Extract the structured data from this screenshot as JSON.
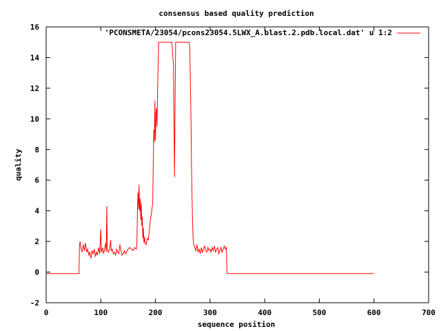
{
  "chart_data": {
    "type": "line",
    "title": "consensus based quality prediction",
    "xlabel": "sequence position",
    "ylabel": "quality",
    "xlim": [
      0,
      700
    ],
    "ylim": [
      -2,
      16
    ],
    "xticks": [
      0,
      100,
      200,
      300,
      400,
      500,
      600,
      700
    ],
    "yticks": [
      -2,
      0,
      2,
      4,
      6,
      8,
      10,
      12,
      14,
      16
    ],
    "grid": false,
    "legend_position": "top-right",
    "series": [
      {
        "name": "'PCONSMETA/23054/pcons23054.5LWX_A.blast.2.pdb.local.dat' u 1:2",
        "color": "#ff0000",
        "points": [
          [
            0,
            -0.1
          ],
          [
            60,
            -0.1
          ],
          [
            61,
            1.7
          ],
          [
            62,
            2.0
          ],
          [
            64,
            1.5
          ],
          [
            66,
            1.3
          ],
          [
            68,
            1.8
          ],
          [
            70,
            1.4
          ],
          [
            72,
            1.9
          ],
          [
            74,
            1.3
          ],
          [
            76,
            1.5
          ],
          [
            78,
            1.1
          ],
          [
            80,
            1.3
          ],
          [
            82,
            0.9
          ],
          [
            84,
            1.4
          ],
          [
            86,
            1.2
          ],
          [
            88,
            1.5
          ],
          [
            90,
            1.0
          ],
          [
            92,
            1.3
          ],
          [
            94,
            1.1
          ],
          [
            96,
            1.6
          ],
          [
            98,
            1.2
          ],
          [
            100,
            2.8
          ],
          [
            101,
            1.3
          ],
          [
            103,
            1.6
          ],
          [
            105,
            1.2
          ],
          [
            107,
            1.5
          ],
          [
            109,
            1.9
          ],
          [
            110,
            1.3
          ],
          [
            111,
            4.3
          ],
          [
            112,
            1.5
          ],
          [
            114,
            1.3
          ],
          [
            116,
            1.5
          ],
          [
            118,
            2.1
          ],
          [
            119,
            1.4
          ],
          [
            121,
            1.5
          ],
          [
            123,
            1.2
          ],
          [
            125,
            1.3
          ],
          [
            127,
            1.1
          ],
          [
            129,
            1.5
          ],
          [
            131,
            1.3
          ],
          [
            133,
            1.2
          ],
          [
            135,
            1.8
          ],
          [
            137,
            1.4
          ],
          [
            139,
            1.1
          ],
          [
            141,
            1.2
          ],
          [
            143,
            1.4
          ],
          [
            145,
            1.2
          ],
          [
            147,
            1.3
          ],
          [
            150,
            1.5
          ],
          [
            153,
            1.6
          ],
          [
            156,
            1.5
          ],
          [
            159,
            1.4
          ],
          [
            162,
            1.6
          ],
          [
            165,
            1.5
          ],
          [
            166,
            1.7
          ],
          [
            167,
            3.9
          ],
          [
            168,
            5.2
          ],
          [
            169,
            4.1
          ],
          [
            170,
            5.7
          ],
          [
            171,
            4.0
          ],
          [
            172,
            4.8
          ],
          [
            173,
            3.4
          ],
          [
            174,
            4.5
          ],
          [
            175,
            3.0
          ],
          [
            176,
            3.6
          ],
          [
            177,
            2.2
          ],
          [
            178,
            2.9
          ],
          [
            179,
            1.9
          ],
          [
            180,
            2.3
          ],
          [
            181,
            1.9
          ],
          [
            183,
            1.8
          ],
          [
            185,
            2.2
          ],
          [
            187,
            2.1
          ],
          [
            189,
            2.8
          ],
          [
            191,
            3.5
          ],
          [
            193,
            3.9
          ],
          [
            195,
            4.5
          ],
          [
            196,
            7.0
          ],
          [
            197,
            9.3
          ],
          [
            198,
            8.5
          ],
          [
            199,
            11.2
          ],
          [
            200,
            8.6
          ],
          [
            201,
            10.3
          ],
          [
            202,
            10.7
          ],
          [
            203,
            9.5
          ],
          [
            204,
            12.0
          ],
          [
            206,
            15.0
          ],
          [
            210,
            15.0
          ],
          [
            220,
            15.0
          ],
          [
            230,
            15.0
          ],
          [
            233,
            13.5
          ],
          [
            234,
            9.7
          ],
          [
            235,
            6.2
          ],
          [
            236,
            11.3
          ],
          [
            237,
            15.0
          ],
          [
            245,
            15.0
          ],
          [
            255,
            15.0
          ],
          [
            262,
            15.0
          ],
          [
            263,
            14.5
          ],
          [
            264,
            12.4
          ],
          [
            265,
            10.2
          ],
          [
            266,
            7.0
          ],
          [
            267,
            4.9
          ],
          [
            268,
            3.2
          ],
          [
            269,
            2.1
          ],
          [
            270,
            1.8
          ],
          [
            272,
            1.6
          ],
          [
            274,
            1.4
          ],
          [
            276,
            1.8
          ],
          [
            278,
            1.3
          ],
          [
            280,
            1.5
          ],
          [
            282,
            1.2
          ],
          [
            284,
            1.6
          ],
          [
            286,
            1.3
          ],
          [
            288,
            1.5
          ],
          [
            290,
            1.7
          ],
          [
            292,
            1.4
          ],
          [
            294,
            1.3
          ],
          [
            296,
            1.6
          ],
          [
            298,
            1.4
          ],
          [
            300,
            1.5
          ],
          [
            302,
            1.3
          ],
          [
            304,
            1.6
          ],
          [
            306,
            1.4
          ],
          [
            308,
            1.7
          ],
          [
            310,
            1.3
          ],
          [
            312,
            1.5
          ],
          [
            314,
            1.6
          ],
          [
            316,
            1.2
          ],
          [
            318,
            1.4
          ],
          [
            320,
            1.6
          ],
          [
            322,
            1.3
          ],
          [
            324,
            1.5
          ],
          [
            326,
            1.7
          ],
          [
            328,
            1.5
          ],
          [
            330,
            1.6
          ],
          [
            331,
            -0.1
          ],
          [
            400,
            -0.1
          ],
          [
            500,
            -0.1
          ],
          [
            600,
            -0.1
          ]
        ]
      }
    ]
  }
}
